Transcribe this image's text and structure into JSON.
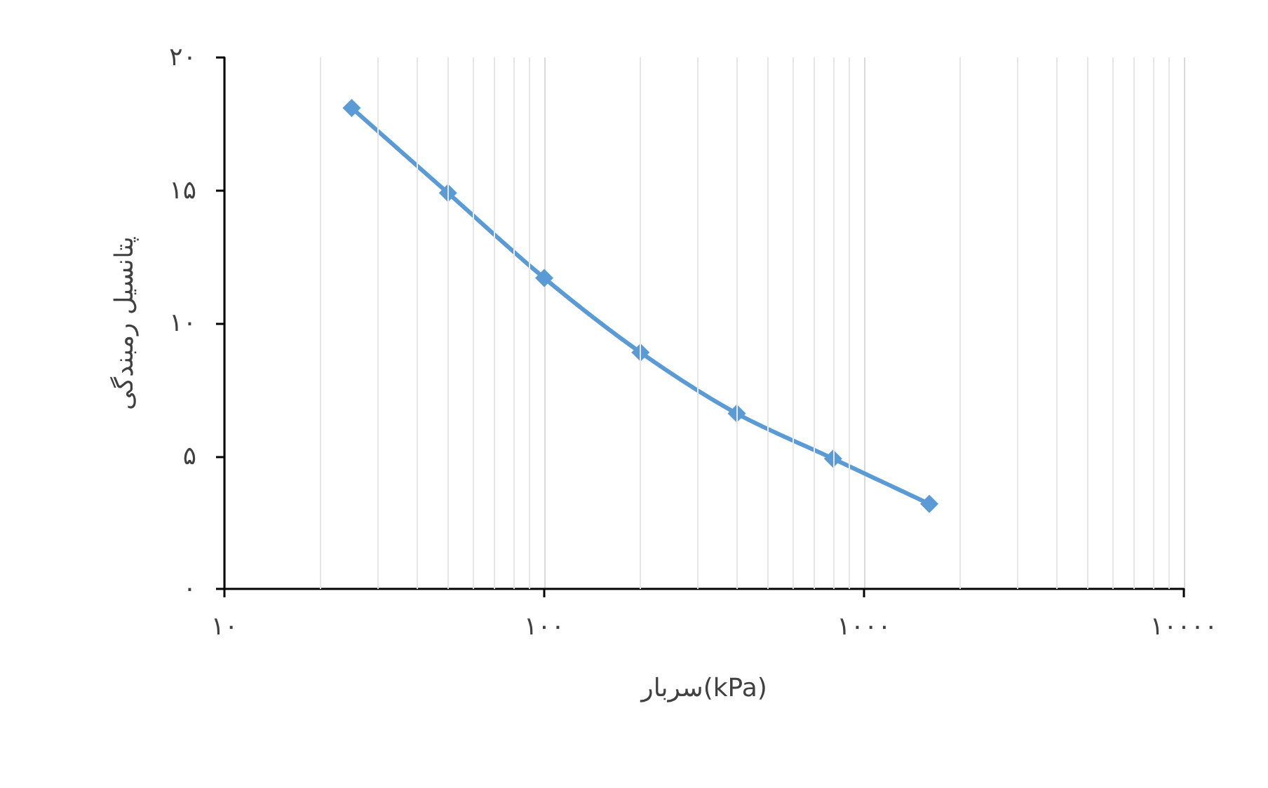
{
  "chart_data": {
    "type": "line",
    "xlabel": "سربار(kPa)",
    "ylabel": "پتانسیل رمبندگی",
    "log": "x",
    "x": [
      25,
      50,
      100,
      200,
      400,
      800,
      1600
    ],
    "series": [
      {
        "color": "#5b9bd5",
        "values": [
          18.1,
          14.9,
          11.7,
          8.9,
          6.6,
          4.9,
          3.2
        ]
      }
    ],
    "xlim": [
      10,
      10000
    ],
    "xticks": [
      {
        "value": 10,
        "label": "۱۰"
      },
      {
        "value": 100,
        "label": "۱۰۰"
      },
      {
        "value": 1000,
        "label": "۱۰۰۰"
      },
      {
        "value": 10000,
        "label": "۱۰۰۰۰"
      }
    ],
    "ylim": [
      0,
      20
    ],
    "yticks": [
      {
        "value": 0,
        "label": "۰"
      },
      {
        "value": 5,
        "label": "۵"
      },
      {
        "value": 10,
        "label": "۱۰"
      },
      {
        "value": 15,
        "label": "۱۵"
      },
      {
        "value": 20,
        "label": "۲۰"
      }
    ],
    "grid": "x",
    "marker": "diamond",
    "line_style": "solid"
  }
}
